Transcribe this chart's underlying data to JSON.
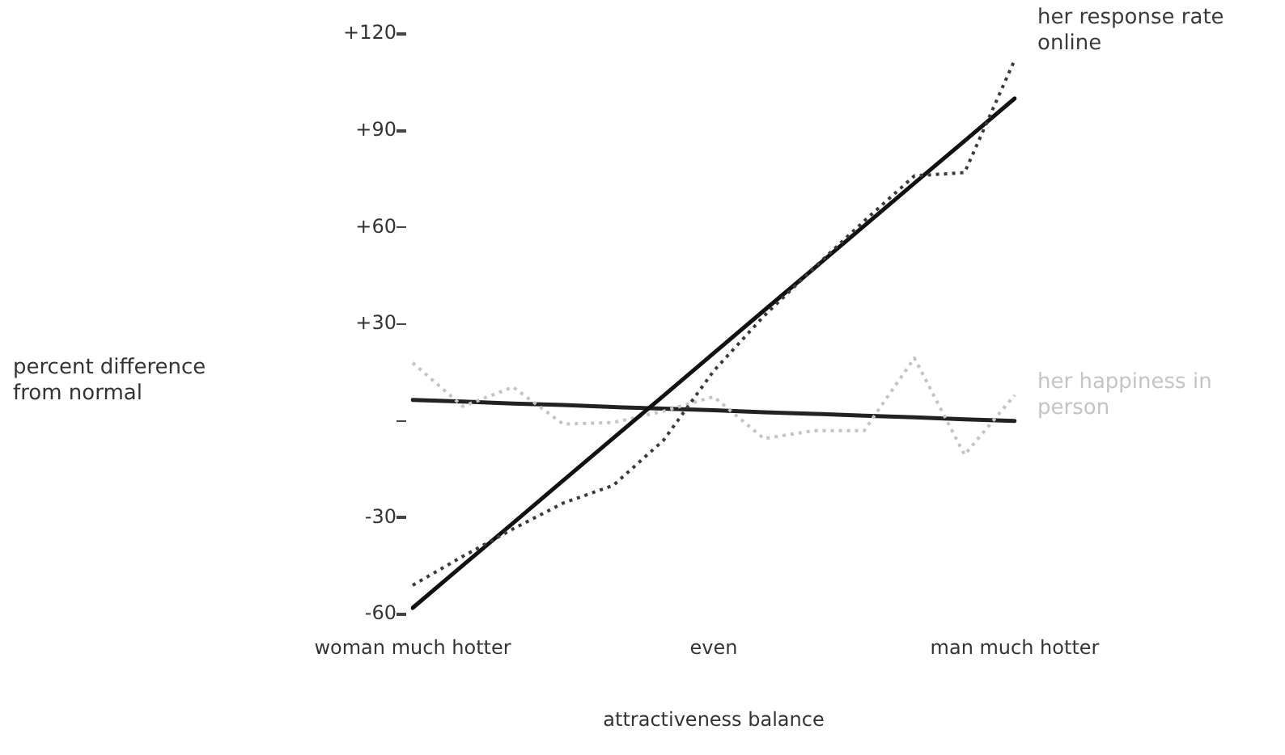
{
  "chart_data": {
    "type": "line",
    "xlabel": "attractiveness balance",
    "annotations": [
      "percent difference from normal"
    ],
    "categories": [
      "woman much hotter",
      null,
      null,
      null,
      null,
      null,
      "even",
      null,
      null,
      null,
      null,
      null,
      "man much hotter"
    ],
    "ylim": [
      -60,
      120
    ],
    "yticks": [
      {
        "value": 120,
        "label": "+120"
      },
      {
        "value": 90,
        "label": "+90"
      },
      {
        "value": 60,
        "label": "+60"
      },
      {
        "value": 30,
        "label": "+30"
      },
      {
        "value": 0,
        "label": null
      },
      -30,
      -60
    ],
    "grid": false,
    "legend": false,
    "marker": "none",
    "series": [
      {
        "name": "her response rate online",
        "color": "#3a3a3a",
        "line_style": "dotted",
        "values": [
          -51,
          -42,
          -33.5,
          -25.5,
          -20,
          -6,
          15.5,
          32.5,
          47.5,
          62,
          76,
          77,
          112
        ]
      },
      {
        "color": "#111111",
        "line_style": "solid",
        "values": [
          -58,
          -44.8,
          -31.7,
          -18.5,
          -5.3,
          7.8,
          21,
          34.2,
          47.3,
          60.5,
          73.7,
          86.8,
          100
        ]
      },
      {
        "name": "her happiness in person",
        "color": "#c4c4c4",
        "line_style": "dotted",
        "values": [
          18,
          4.5,
          10.5,
          -1,
          -0.5,
          3,
          7.5,
          -5.5,
          -3,
          -3,
          19.5,
          -10.5,
          8
        ]
      },
      {
        "color": "#222222",
        "line_style": "solid",
        "values": [
          6.5,
          6,
          5.4,
          4.9,
          4.3,
          3.8,
          3.3,
          2.7,
          2.2,
          1.6,
          1.1,
          0.5,
          0
        ]
      }
    ]
  }
}
